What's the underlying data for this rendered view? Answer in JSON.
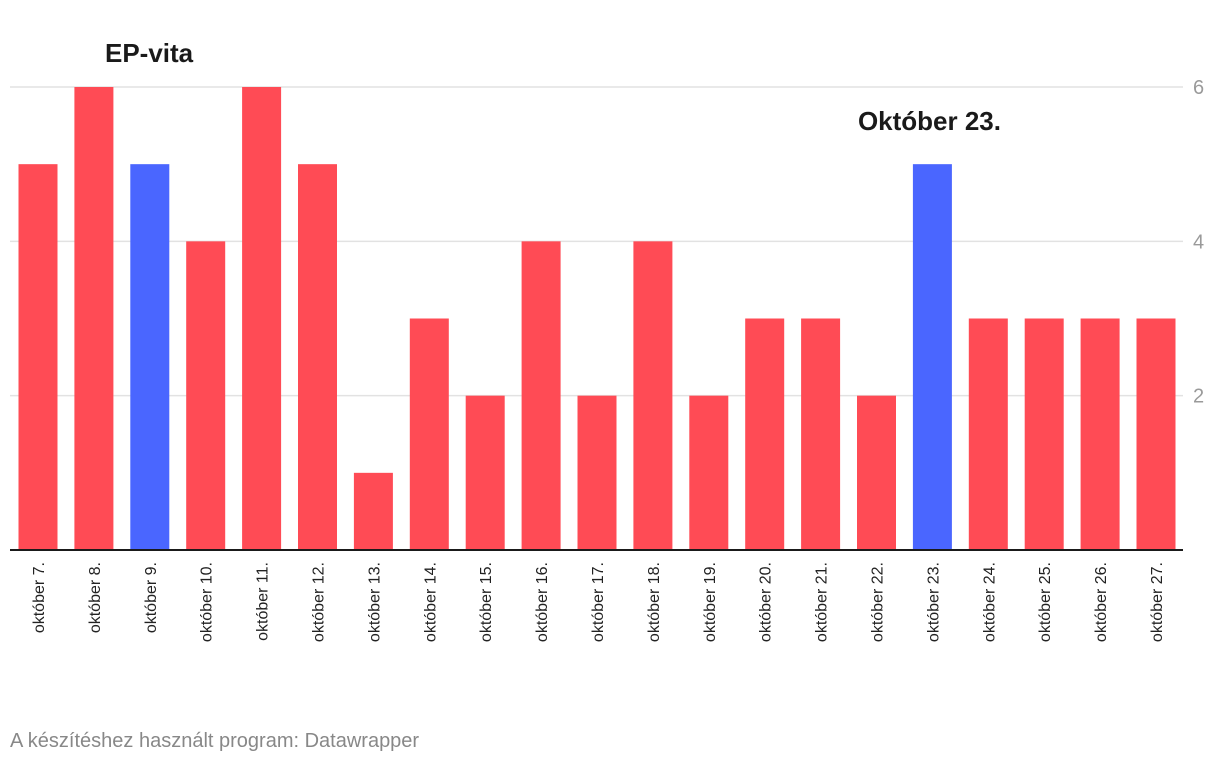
{
  "chart_data": {
    "type": "bar",
    "categories": [
      "október 7.",
      "október 8.",
      "október 9.",
      "október 10.",
      "október 11.",
      "október 12.",
      "október 13.",
      "október 14.",
      "október 15.",
      "október 16.",
      "október 17.",
      "október 18.",
      "október 19.",
      "október 20.",
      "október 21.",
      "október 22.",
      "október 23.",
      "október 24.",
      "október 25.",
      "október 26.",
      "október 27."
    ],
    "values": [
      5,
      6,
      5,
      4,
      6,
      5,
      1,
      3,
      2,
      4,
      2,
      4,
      2,
      3,
      3,
      2,
      5,
      3,
      3,
      3,
      3
    ],
    "highlighted": [
      "október 9.",
      "október 23."
    ],
    "colors": {
      "default": "#ff4b55",
      "highlight": "#4a66ff"
    },
    "ylim": [
      0,
      6
    ],
    "yticks": [
      2,
      4,
      6
    ],
    "y_axis_side": "right",
    "grid": true,
    "annotations": [
      {
        "text": "EP-vita",
        "category": "október 9."
      },
      {
        "text": "Október 23.",
        "category": "október 23."
      }
    ],
    "title": "",
    "xlabel": "",
    "ylabel": ""
  },
  "footer": {
    "credit": "A készítéshez használt program: Datawrapper"
  }
}
